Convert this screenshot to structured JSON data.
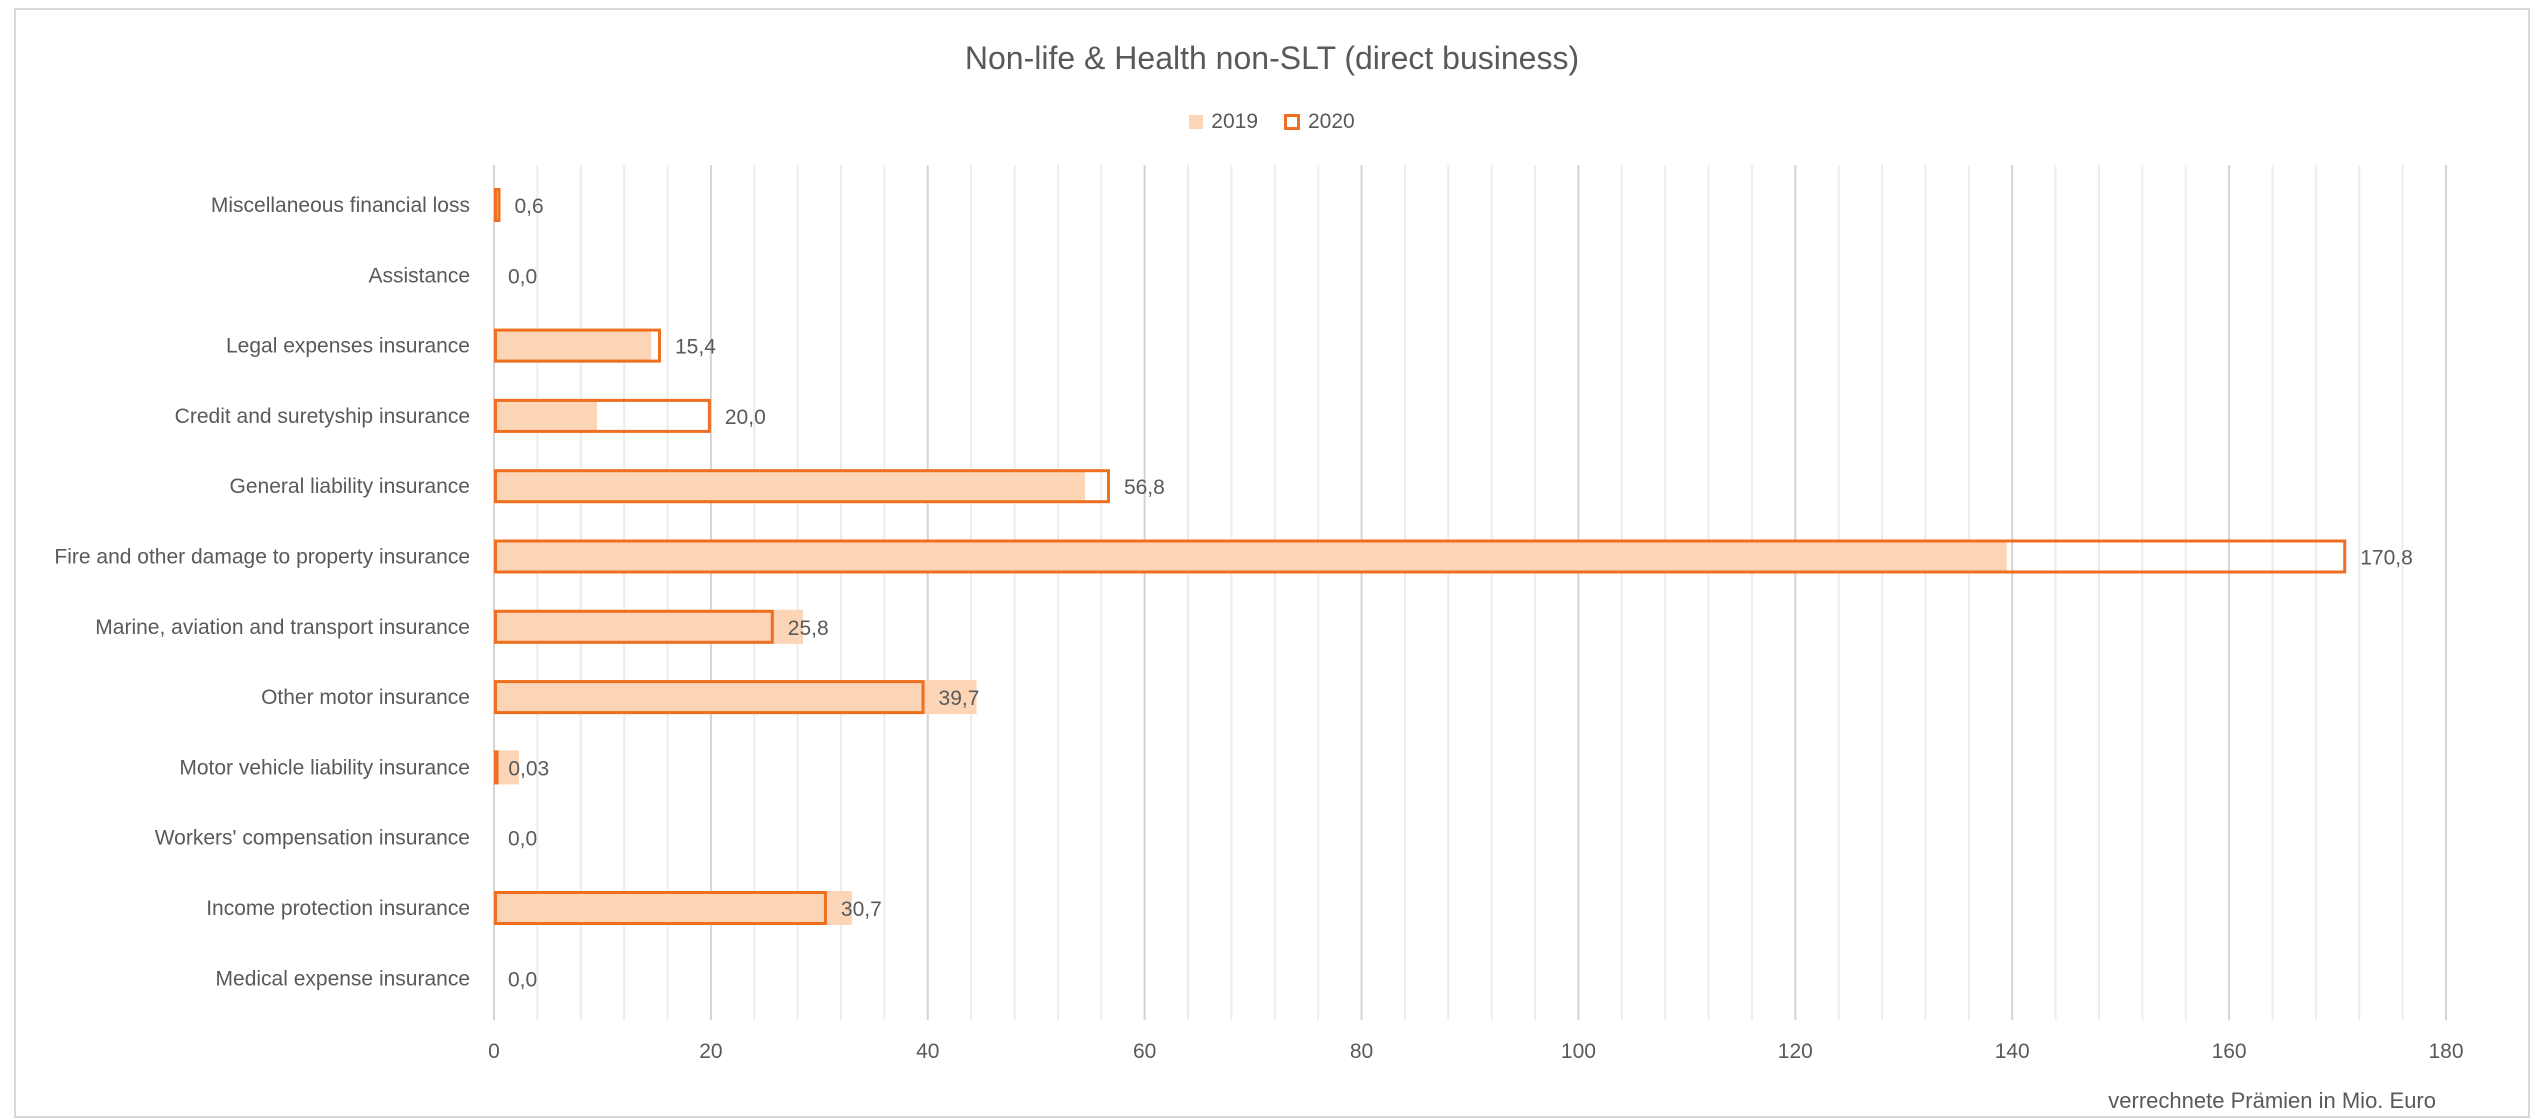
{
  "chart_data": {
    "type": "bar",
    "orientation": "horizontal",
    "title": "Non-life & Health non-SLT (direct business)",
    "xlabel": "verrechnete  Prämien in Mio. Euro",
    "xlim": [
      0,
      180
    ],
    "major_ticks": [
      0,
      20,
      40,
      60,
      80,
      100,
      120,
      140,
      160,
      180
    ],
    "tick_labels": [
      "0",
      "20",
      "40",
      "60",
      "80",
      "100",
      "120",
      "140",
      "160",
      "180"
    ],
    "minor_tick_step": 4,
    "grid": "vertical",
    "legend_position": "top",
    "categories": [
      "Miscellaneous financial loss",
      "Assistance",
      "Legal expenses insurance",
      "Credit and suretyship insurance",
      "General liability insurance",
      "Fire and other damage to property insurance",
      "Marine, aviation and transport insurance",
      "Other motor insurance",
      "Motor vehicle liability insurance",
      "Workers' compensation insurance",
      "Income protection insurance",
      "Medical expense insurance"
    ],
    "series": [
      {
        "name": "2019",
        "style": "filled",
        "color": "#fbd5b5",
        "values": [
          0.5,
          0.0,
          14.5,
          9.5,
          54.5,
          139.5,
          28.5,
          44.5,
          2.3,
          0.0,
          33.0,
          0.0
        ]
      },
      {
        "name": "2020",
        "style": "outline",
        "color": "#ed6f1f",
        "values": [
          0.6,
          0.0,
          15.4,
          20.0,
          56.8,
          170.8,
          25.8,
          39.7,
          0.03,
          0.0,
          30.7,
          0.0
        ]
      }
    ],
    "data_labels": [
      "0,6",
      "0,0",
      "15,4",
      "20,0",
      "56,8",
      "170,8",
      "25,8",
      "39,7",
      "0,03",
      "0,0",
      "30,7",
      "0,0"
    ]
  }
}
